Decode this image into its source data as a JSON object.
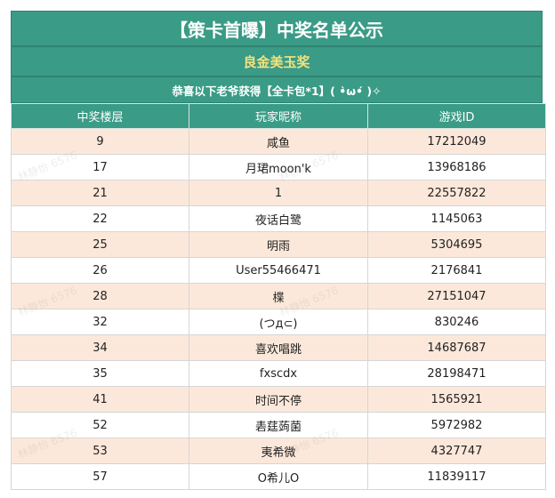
{
  "header": {
    "title": "【策卡首曝】中奖名单公示",
    "prize_name": "良金美玉奖",
    "notice": "恭喜以下老爷获得【全卡包*1】( •̀ω•́ )✧"
  },
  "table": {
    "columns": [
      "中奖楼层",
      "玩家昵称",
      "游戏ID"
    ],
    "rows": [
      [
        "9",
        "咸鱼",
        "17212049"
      ],
      [
        "17",
        "月珺moon'k",
        "13968186"
      ],
      [
        "21",
        "1",
        "22557822"
      ],
      [
        "22",
        "夜话白鹭",
        "1145063"
      ],
      [
        "25",
        "明雨",
        "5304695"
      ],
      [
        "26",
        "User55466471",
        "2176841"
      ],
      [
        "28",
        "楪",
        "27151047"
      ],
      [
        "32",
        "(つд⊂)",
        "830246"
      ],
      [
        "34",
        "喜欢唱跳",
        "14687687"
      ],
      [
        "35",
        "fxscdx",
        "28198471"
      ],
      [
        "41",
        "时间不停",
        "1565921"
      ],
      [
        "52",
        "砉莛蒟菌",
        "5972982"
      ],
      [
        "53",
        "夷希微",
        "4327747"
      ],
      [
        "57",
        "O希儿O",
        "11839117"
      ]
    ]
  },
  "watermark": "林静怡 6576",
  "colors": {
    "header_green": "#3a9b86",
    "prize_yellow": "#f4e27c",
    "stripe_peach": "#fce8da"
  }
}
